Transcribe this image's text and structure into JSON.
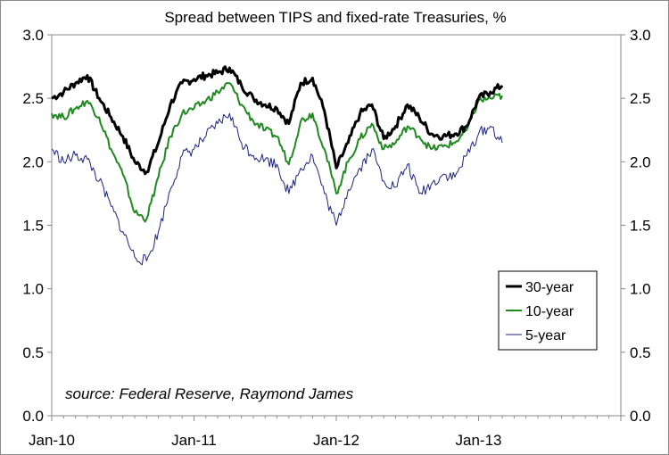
{
  "chart_data": {
    "type": "line",
    "title": "Spread between TIPS and fixed-rate Treasuries, %",
    "annotation": "source: Federal Reserve, Raymond James",
    "xlabel": "",
    "ylabel": "",
    "x_ticks": [
      "Jan-10",
      "Jan-11",
      "Jan-12",
      "Jan-13"
    ],
    "ylim": [
      0,
      3
    ],
    "y_ticks": [
      "0.0",
      "0.5",
      "1.0",
      "1.5",
      "2.0",
      "2.5",
      "3.0"
    ],
    "y_ticks_right": [
      "0.0",
      "0.5",
      "1.0",
      "1.5",
      "2.0",
      "2.5",
      "3.0"
    ],
    "grid": false,
    "legend_position": "right",
    "x": [
      "2010-01",
      "2010-02",
      "2010-03",
      "2010-04",
      "2010-05",
      "2010-06",
      "2010-07",
      "2010-08",
      "2010-09",
      "2010-10",
      "2010-11",
      "2010-12",
      "2011-01",
      "2011-02",
      "2011-03",
      "2011-04",
      "2011-05",
      "2011-06",
      "2011-07",
      "2011-08",
      "2011-09",
      "2011-10",
      "2011-11",
      "2011-12",
      "2012-01",
      "2012-02",
      "2012-03",
      "2012-04",
      "2012-05",
      "2012-06",
      "2012-07",
      "2012-08",
      "2012-09",
      "2012-10",
      "2012-11",
      "2012-12",
      "2013-01",
      "2013-02",
      "2013-03"
    ],
    "series": [
      {
        "name": "30-year",
        "color": "#000000",
        "values": [
          2.5,
          2.55,
          2.62,
          2.68,
          2.5,
          2.35,
          2.2,
          2.0,
          1.92,
          2.15,
          2.45,
          2.62,
          2.65,
          2.68,
          2.7,
          2.74,
          2.6,
          2.5,
          2.45,
          2.42,
          2.3,
          2.62,
          2.66,
          2.4,
          1.95,
          2.15,
          2.38,
          2.45,
          2.18,
          2.28,
          2.45,
          2.35,
          2.22,
          2.2,
          2.22,
          2.28,
          2.5,
          2.55,
          2.6
        ]
      },
      {
        "name": "10-year",
        "color": "#1f8a1f",
        "values": [
          2.38,
          2.35,
          2.42,
          2.48,
          2.35,
          2.1,
          1.9,
          1.6,
          1.55,
          1.88,
          2.2,
          2.38,
          2.42,
          2.48,
          2.55,
          2.62,
          2.45,
          2.32,
          2.25,
          2.2,
          1.98,
          2.32,
          2.38,
          2.1,
          1.75,
          2.0,
          2.18,
          2.3,
          2.1,
          2.15,
          2.28,
          2.2,
          2.1,
          2.12,
          2.15,
          2.25,
          2.48,
          2.5,
          2.52
        ]
      },
      {
        "name": "5-year",
        "color": "#1a237e",
        "values": [
          2.1,
          2.0,
          2.05,
          2.02,
          1.85,
          1.65,
          1.45,
          1.25,
          1.22,
          1.45,
          1.78,
          2.05,
          2.1,
          2.2,
          2.3,
          2.38,
          2.15,
          2.05,
          2.02,
          1.98,
          1.75,
          1.95,
          2.05,
          1.75,
          1.5,
          1.78,
          1.95,
          2.1,
          1.85,
          1.8,
          1.98,
          1.75,
          1.82,
          1.9,
          1.88,
          2.05,
          2.22,
          2.28,
          2.15
        ]
      }
    ]
  }
}
